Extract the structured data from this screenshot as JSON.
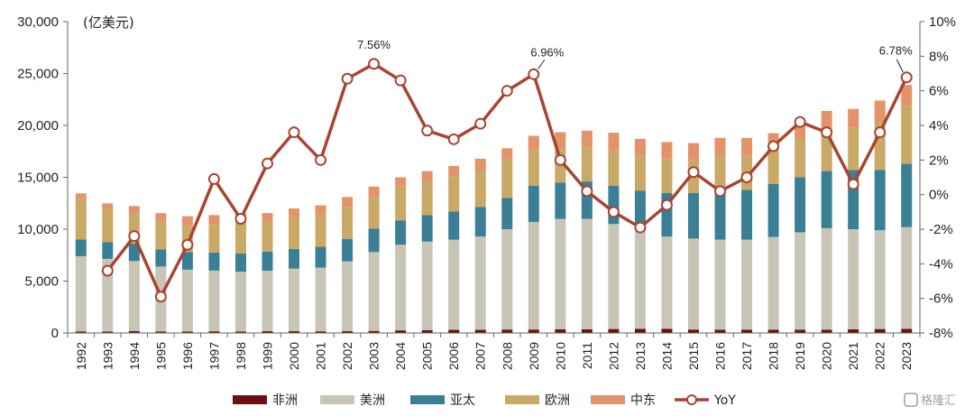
{
  "chart_data": {
    "type": "bar",
    "stacked": true,
    "unit_label": "(亿美元)",
    "categories": [
      "1992",
      "1993",
      "1994",
      "1995",
      "1996",
      "1997",
      "1998",
      "1999",
      "2000",
      "2001",
      "2002",
      "2003",
      "2004",
      "2005",
      "2006",
      "2007",
      "2008",
      "2009",
      "2010",
      "2011",
      "2012",
      "2013",
      "2014",
      "2015",
      "2016",
      "2017",
      "2018",
      "2019",
      "2020",
      "2021",
      "2022",
      "2023"
    ],
    "series": [
      {
        "name": "非洲",
        "color": "#6b0f14",
        "values": [
          150,
          140,
          180,
          150,
          150,
          160,
          150,
          170,
          170,
          160,
          170,
          200,
          250,
          270,
          300,
          300,
          330,
          330,
          350,
          350,
          380,
          400,
          400,
          330,
          320,
          320,
          320,
          320,
          320,
          350,
          380,
          400
        ]
      },
      {
        "name": "美洲",
        "color": "#c8c4b6",
        "values": [
          7250,
          7000,
          6750,
          6250,
          5950,
          5850,
          5750,
          5830,
          6030,
          6140,
          6730,
          7600,
          8250,
          8530,
          8700,
          9000,
          9670,
          10370,
          10650,
          10650,
          10120,
          9600,
          8900,
          8770,
          8680,
          8680,
          8930,
          9380,
          9780,
          9650,
          9520,
          9800
        ]
      },
      {
        "name": "亚太",
        "color": "#3a7f95",
        "values": [
          1600,
          1600,
          1700,
          1650,
          1700,
          1750,
          1750,
          1850,
          1900,
          2000,
          2150,
          2250,
          2350,
          2550,
          2700,
          2850,
          3000,
          3500,
          3500,
          3600,
          3700,
          3700,
          4200,
          4400,
          4800,
          4800,
          5100,
          5300,
          5500,
          5700,
          5800,
          6100
        ]
      },
      {
        "name": "欧洲",
        "color": "#c9a965",
        "values": [
          3900,
          3200,
          2900,
          2700,
          2600,
          2700,
          2900,
          2900,
          3000,
          3100,
          3100,
          3100,
          3300,
          3300,
          3400,
          3500,
          3700,
          3500,
          3300,
          3300,
          3400,
          3400,
          3300,
          3200,
          3300,
          3300,
          3300,
          3700,
          4000,
          4100,
          4600,
          5600
        ]
      },
      {
        "name": "中东",
        "color": "#e3936a",
        "values": [
          550,
          550,
          700,
          800,
          850,
          900,
          1000,
          800,
          900,
          900,
          950,
          950,
          850,
          950,
          1000,
          1150,
          1100,
          1300,
          1550,
          1600,
          1700,
          1600,
          1600,
          1600,
          1700,
          1700,
          1600,
          1800,
          1800,
          1800,
          2100,
          2000
        ]
      }
    ],
    "line_series": {
      "name": "YoY",
      "color": "#a84532",
      "axis": "right",
      "values": [
        null,
        -4.4,
        -2.4,
        -5.9,
        -2.9,
        0.9,
        -1.4,
        1.8,
        3.6,
        2.0,
        6.7,
        7.56,
        6.6,
        3.7,
        3.2,
        4.1,
        6.0,
        6.96,
        2.0,
        0.2,
        -1.0,
        -1.9,
        -0.6,
        1.3,
        0.2,
        1.0,
        2.8,
        4.2,
        3.6,
        0.6,
        3.6,
        6.78
      ]
    },
    "annotations": [
      {
        "text": "7.56%",
        "index": 11
      },
      {
        "text": "6.96%",
        "index": 17
      },
      {
        "text": "6.78%",
        "index": 31
      }
    ],
    "left_axis": {
      "min": 0,
      "max": 30000,
      "ticks": [
        "0",
        "5,000",
        "10,000",
        "15,000",
        "20,000",
        "25,000",
        "30,000"
      ]
    },
    "right_axis": {
      "min": -8,
      "max": 10,
      "ticks": [
        "-8%",
        "-6%",
        "-4%",
        "-2%",
        "0%",
        "2%",
        "4%",
        "6%",
        "8%",
        "10%"
      ]
    },
    "legend": [
      "非洲",
      "美洲",
      "亚太",
      "欧洲",
      "中东",
      "YoY"
    ],
    "legend_position": "bottom",
    "grid": false
  },
  "watermark": "格隆汇"
}
